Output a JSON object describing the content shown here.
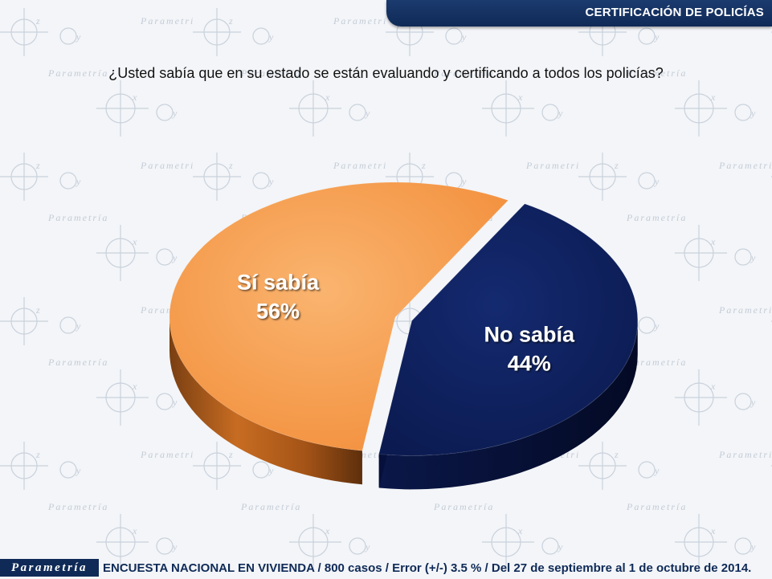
{
  "header": {
    "title": "CERTIFICACIÓN DE POLICÍAS"
  },
  "watermark_text": "Parametría",
  "chart_data": {
    "type": "pie",
    "title": "¿Usted sabía que en su estado se están evaluando y certificando a todos los policías?",
    "unit": "%",
    "slices": [
      {
        "label": "No sabía",
        "value": 44,
        "display": "44%",
        "color": "#0d1e5a",
        "exploded": true
      },
      {
        "label": "Sí sabía",
        "value": 56,
        "display": "56%",
        "color": "#f59c4e",
        "exploded": false
      }
    ]
  },
  "footer": {
    "logo_text": "Parametría",
    "note": "ENCUESTA NACIONAL EN VIVIENDA / 800 casos / Error (+/-) 3.5 % / Del 27 de septiembre al 1 de octubre de 2014."
  },
  "colors": {
    "navy": "#0f2a57",
    "orange": "#f59c4e",
    "orange_side": "#b5601c",
    "dark_blue": "#0d1e5a",
    "dark_blue_side": "#07113a"
  }
}
